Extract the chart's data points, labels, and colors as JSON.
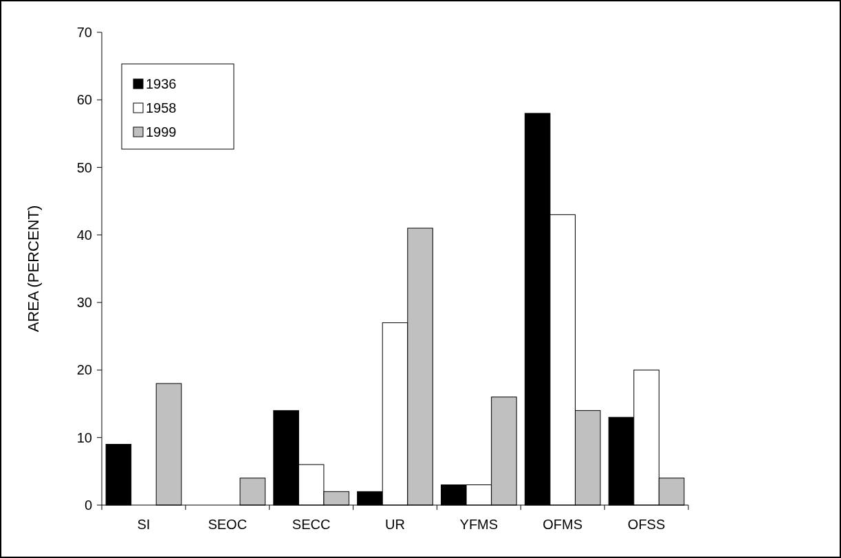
{
  "chart_data": {
    "type": "bar",
    "ylabel": "AREA (PERCENT)",
    "categories": [
      "SI",
      "SEOC",
      "SECC",
      "UR",
      "YFMS",
      "OFMS",
      "OFSS"
    ],
    "series": [
      {
        "name": "1936",
        "color": "#000000",
        "values": [
          9,
          0,
          14,
          2,
          3,
          58,
          13
        ]
      },
      {
        "name": "1958",
        "color": "#ffffff",
        "values": [
          0,
          0,
          6,
          27,
          3,
          43,
          20
        ]
      },
      {
        "name": "1999",
        "color": "#c0c0c0",
        "values": [
          18,
          4,
          2,
          41,
          16,
          14,
          4
        ]
      }
    ],
    "ylim": [
      0,
      70
    ],
    "yticks": [
      0,
      10,
      20,
      30,
      40,
      50,
      60,
      70
    ],
    "grid": false,
    "legend": "top left"
  }
}
